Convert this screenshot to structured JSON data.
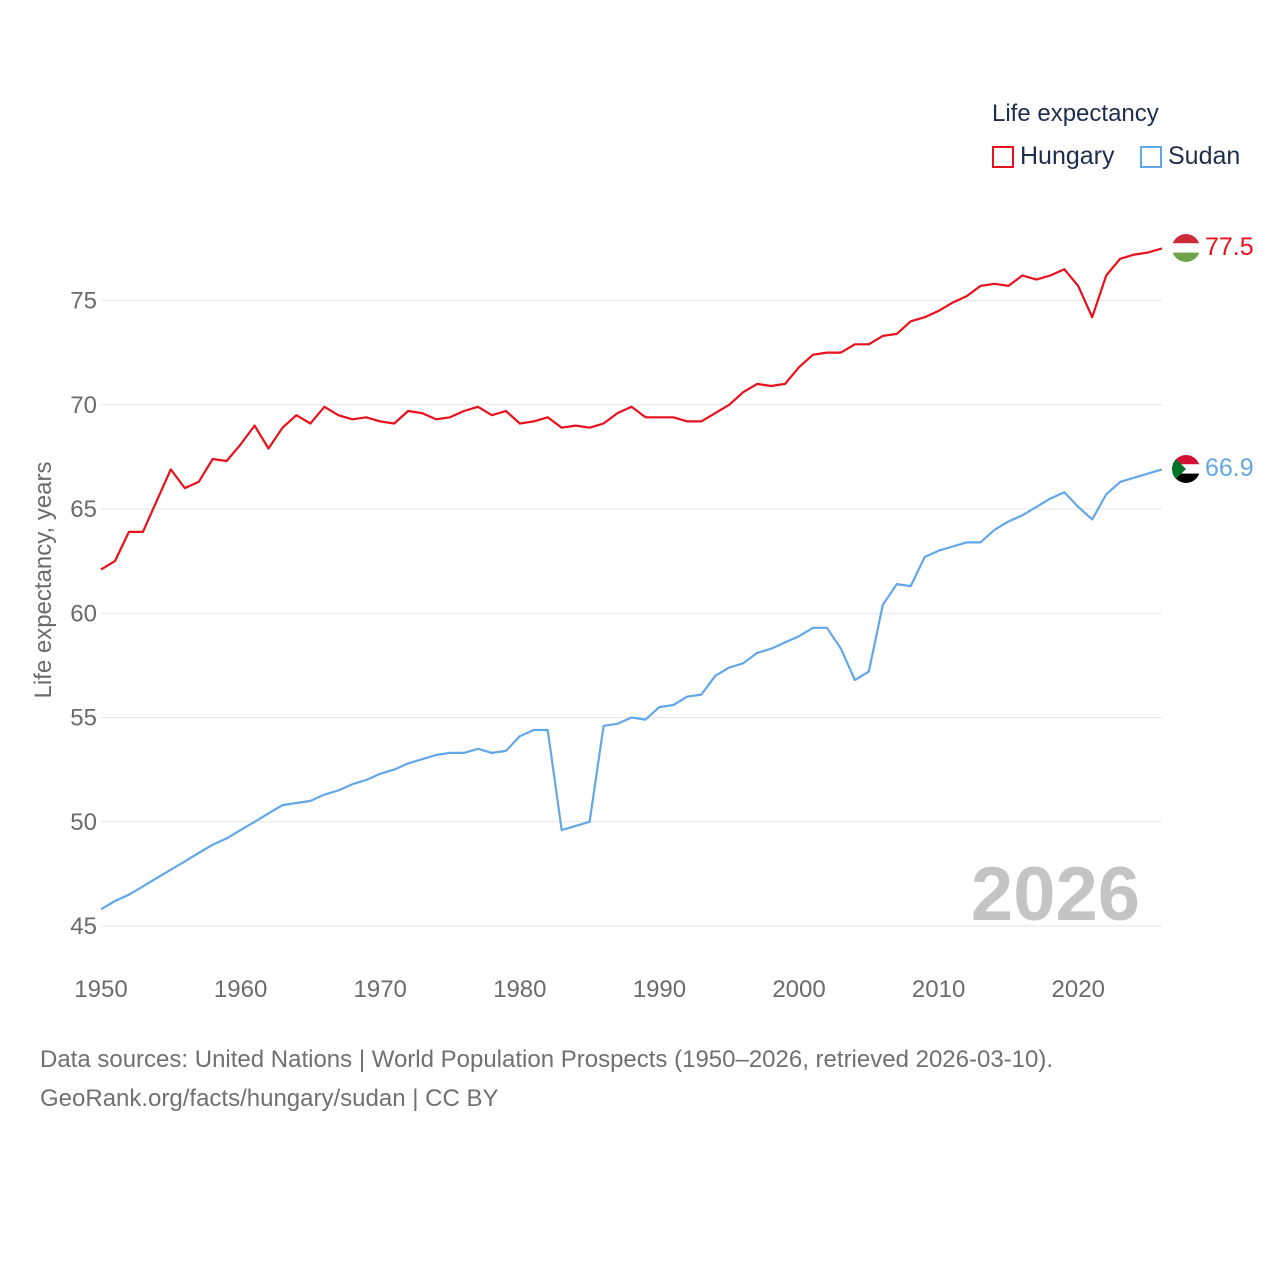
{
  "chart_data": {
    "type": "line",
    "ylabel": "Life expectancy, years",
    "xlabel": "",
    "xlim": [
      1950,
      2026
    ],
    "ylim": [
      44,
      79
    ],
    "x_ticks": [
      1950,
      1960,
      1970,
      1980,
      1990,
      2000,
      2010,
      2020
    ],
    "y_ticks": [
      45,
      50,
      55,
      60,
      65,
      70,
      75
    ],
    "grid": true,
    "legend_title": "Life expectancy",
    "legend_position": "top-right",
    "current_year_label": "2026",
    "x": [
      1950,
      1951,
      1952,
      1953,
      1954,
      1955,
      1956,
      1957,
      1958,
      1959,
      1960,
      1961,
      1962,
      1963,
      1964,
      1965,
      1966,
      1967,
      1968,
      1969,
      1970,
      1971,
      1972,
      1973,
      1974,
      1975,
      1976,
      1977,
      1978,
      1979,
      1980,
      1981,
      1982,
      1983,
      1984,
      1985,
      1986,
      1987,
      1988,
      1989,
      1990,
      1991,
      1992,
      1993,
      1994,
      1995,
      1996,
      1997,
      1998,
      1999,
      2000,
      2001,
      2002,
      2003,
      2004,
      2005,
      2006,
      2007,
      2008,
      2009,
      2010,
      2011,
      2012,
      2013,
      2014,
      2015,
      2016,
      2017,
      2018,
      2019,
      2020,
      2021,
      2022,
      2023,
      2024,
      2025,
      2026
    ],
    "series": [
      {
        "name": "Hungary",
        "color": "#e8101a",
        "end_label": "77.5",
        "flag": "hungary-flag-icon",
        "values": [
          62.1,
          62.5,
          63.9,
          63.9,
          65.4,
          66.9,
          66.0,
          66.3,
          67.4,
          67.3,
          68.1,
          69.0,
          67.9,
          68.9,
          69.5,
          69.1,
          69.9,
          69.5,
          69.3,
          69.4,
          69.2,
          69.1,
          69.7,
          69.6,
          69.3,
          69.4,
          69.7,
          69.9,
          69.5,
          69.7,
          69.1,
          69.2,
          69.4,
          68.9,
          69.0,
          68.9,
          69.1,
          69.6,
          69.9,
          69.4,
          69.4,
          69.4,
          69.2,
          69.2,
          69.6,
          70.0,
          70.6,
          71.0,
          70.9,
          71.0,
          71.8,
          72.4,
          72.5,
          72.5,
          72.9,
          72.9,
          73.3,
          73.4,
          74.0,
          74.2,
          74.5,
          74.9,
          75.2,
          75.7,
          75.8,
          75.7,
          76.2,
          76.0,
          76.2,
          76.5,
          75.7,
          74.2,
          76.2,
          77.0,
          77.2,
          77.3,
          77.5
        ]
      },
      {
        "name": "Sudan",
        "color": "#62a8e8",
        "end_label": "66.9",
        "flag": "sudan-flag-icon",
        "values": [
          45.8,
          46.2,
          46.5,
          46.9,
          47.3,
          47.7,
          48.1,
          48.5,
          48.9,
          49.2,
          49.6,
          50.0,
          50.4,
          50.8,
          50.9,
          51.0,
          51.3,
          51.5,
          51.8,
          52.0,
          52.3,
          52.5,
          52.8,
          53.0,
          53.2,
          53.3,
          53.3,
          53.5,
          53.3,
          53.4,
          54.1,
          54.4,
          54.4,
          49.6,
          49.8,
          50.0,
          54.6,
          54.7,
          55.0,
          54.9,
          55.5,
          55.6,
          56.0,
          56.1,
          57.0,
          57.4,
          57.6,
          58.1,
          58.3,
          58.6,
          58.9,
          59.3,
          59.3,
          58.3,
          56.8,
          57.2,
          60.4,
          61.4,
          61.3,
          62.7,
          63.0,
          63.2,
          63.4,
          63.4,
          64.0,
          64.4,
          64.7,
          65.1,
          65.5,
          65.8,
          65.1,
          64.5,
          65.7,
          66.3,
          66.5,
          66.7,
          66.9
        ]
      }
    ]
  },
  "source": {
    "line1": "Data sources: United Nations | World Population Prospects (1950–2026, retrieved 2026-03-10).",
    "line2": "GeoRank.org/facts/hungary/sudan | CC BY"
  }
}
